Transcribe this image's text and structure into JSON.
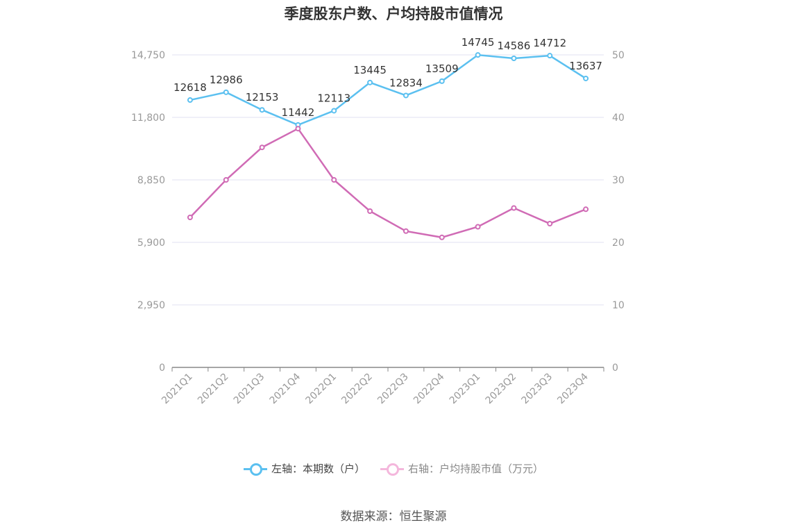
{
  "chart_data": {
    "type": "line",
    "title": "季度股东户数、户均持股市值情况",
    "categories": [
      "2021Q1",
      "2021Q2",
      "2021Q3",
      "2021Q4",
      "2022Q1",
      "2022Q2",
      "2022Q3",
      "2022Q4",
      "2023Q1",
      "2023Q2",
      "2023Q3",
      "2023Q4"
    ],
    "y_left": {
      "ticks": [
        "0",
        "2,950",
        "5,900",
        "8,850",
        "11,800",
        "14,750"
      ],
      "range": [
        0,
        14750
      ]
    },
    "y_right": {
      "ticks": [
        "0",
        "10",
        "20",
        "30",
        "40",
        "50"
      ],
      "range": [
        0,
        50
      ]
    },
    "series": [
      {
        "name": "左轴：本期数（户）",
        "axis": "left",
        "color": "#5bc0f0",
        "values": [
          12618,
          12986,
          12153,
          11442,
          12113,
          13445,
          12834,
          13509,
          14745,
          14586,
          14712,
          13637
        ],
        "labels": [
          "12618",
          "12986",
          "12153",
          "11442",
          "12113",
          "13445",
          "12834",
          "13509",
          "14745",
          "14586",
          "14712",
          "13637"
        ]
      },
      {
        "name": "右轴：户均持股市值（万元）",
        "axis": "right",
        "color": "#d06bb5",
        "values": [
          24.0,
          30.0,
          35.2,
          38.2,
          30.0,
          25.0,
          21.8,
          20.8,
          22.5,
          25.5,
          23.0,
          25.3
        ]
      }
    ],
    "grid": true,
    "legend_position": "bottom"
  },
  "legend": {
    "left_label": "左轴：本期数（户）",
    "right_label": "右轴：户均持股市值（万元）",
    "left_color": "#5bc0f0",
    "right_color": "#f4b7dc"
  },
  "source": "数据来源：恒生聚源"
}
